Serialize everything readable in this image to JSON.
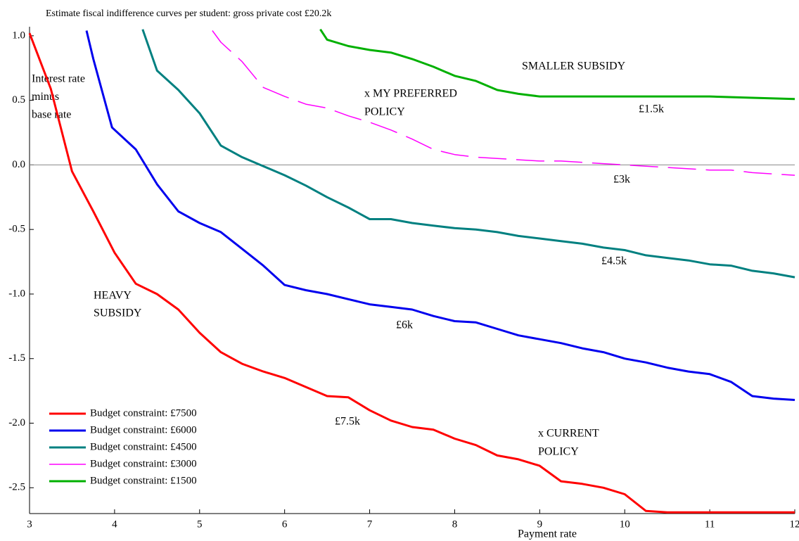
{
  "chart_data": {
    "type": "line",
    "title": "Estimate fiscal indifference curves per student: gross private cost £20.2k",
    "xlabel": "Payment rate",
    "ylabel": [
      "Interest rate",
      "minus",
      "base rate"
    ],
    "xlim": [
      3,
      12
    ],
    "xticks": [
      3,
      4,
      5,
      6,
      7,
      8,
      9,
      10,
      11,
      12
    ],
    "ylim": [
      -2.7,
      1.07
    ],
    "yticks": [
      -2.5,
      {
        "value": -2,
        "label": "-2.0"
      },
      -1.5,
      {
        "value": -1,
        "label": "-1.0"
      },
      -0.5,
      {
        "value": 0,
        "label": "0.0"
      },
      0.5,
      {
        "value": 1,
        "label": "1.0"
      }
    ],
    "zero_line": true,
    "legend": "lower left",
    "annotations": [
      "SMALLER SUBSIDY",
      "x MY PREFERRED",
      "POLICY",
      "£1.5k",
      "£3k",
      "£4.5k",
      "£6k",
      "HEAVY",
      "SUBSIDY",
      "£7.5k",
      "x CURRENT",
      "POLICY"
    ],
    "series": [
      {
        "name": "Budget constraint: £7500",
        "color": "#ff0000",
        "dashed": false,
        "x": [
          3,
          3.25,
          3.5,
          3.75,
          4,
          4.25,
          4.5,
          4.75,
          5,
          5.25,
          5.5,
          5.75,
          6,
          6.25,
          6.5,
          6.75,
          7,
          7.25,
          7.5,
          7.75,
          8,
          8.25,
          8.5,
          8.75,
          9,
          9.25,
          9.5,
          9.75,
          10,
          10.25,
          10.5,
          11,
          11.5,
          12
        ],
        "values": [
          1.02,
          0.59,
          -0.05,
          -0.36,
          -0.68,
          -0.92,
          -1.0,
          -1.12,
          -1.3,
          -1.45,
          -1.54,
          -1.6,
          -1.65,
          -1.72,
          -1.79,
          -1.8,
          -1.9,
          -1.98,
          -2.03,
          -2.05,
          -2.12,
          -2.17,
          -2.25,
          -2.28,
          -2.33,
          -2.45,
          -2.47,
          -2.5,
          -2.55,
          -2.68,
          -2.69,
          -2.69,
          -2.69,
          -2.69
        ]
      },
      {
        "name": "Budget constraint: £6000",
        "color": "#0000ee",
        "dashed": false,
        "x": [
          3.67,
          3.75,
          3.97,
          4.25,
          4.5,
          4.75,
          5,
          5.25,
          5.5,
          5.75,
          6,
          6.25,
          6.5,
          6.75,
          7,
          7.25,
          7.5,
          7.75,
          8,
          8.25,
          8.5,
          8.75,
          9,
          9.25,
          9.5,
          9.75,
          10,
          10.25,
          10.5,
          10.75,
          11,
          11.25,
          11.5,
          11.75,
          12
        ],
        "values": [
          1.04,
          0.82,
          0.29,
          0.12,
          -0.15,
          -0.36,
          -0.45,
          -0.52,
          -0.65,
          -0.78,
          -0.93,
          -0.97,
          -1.0,
          -1.04,
          -1.08,
          -1.1,
          -1.12,
          -1.17,
          -1.21,
          -1.22,
          -1.27,
          -1.32,
          -1.35,
          -1.38,
          -1.42,
          -1.45,
          -1.5,
          -1.53,
          -1.57,
          -1.6,
          -1.62,
          -1.68,
          -1.79,
          -1.81,
          -1.82
        ]
      },
      {
        "name": "Budget constraint: £4500",
        "color": "#008080",
        "dashed": false,
        "x": [
          4.33,
          4.5,
          4.75,
          5,
          5.25,
          5.5,
          5.75,
          6,
          6.25,
          6.5,
          6.75,
          7,
          7.25,
          7.5,
          7.75,
          8,
          8.25,
          8.5,
          8.75,
          9,
          9.25,
          9.5,
          9.75,
          10,
          10.25,
          10.5,
          10.75,
          11,
          11.25,
          11.5,
          11.75,
          12
        ],
        "values": [
          1.05,
          0.73,
          0.58,
          0.4,
          0.15,
          0.06,
          -0.01,
          -0.08,
          -0.16,
          -0.25,
          -0.33,
          -0.42,
          -0.42,
          -0.45,
          -0.47,
          -0.49,
          -0.5,
          -0.52,
          -0.55,
          -0.57,
          -0.59,
          -0.61,
          -0.64,
          -0.66,
          -0.7,
          -0.72,
          -0.74,
          -0.77,
          -0.78,
          -0.82,
          -0.84,
          -0.87
        ]
      },
      {
        "name": "Budget constraint: £3000",
        "color": "#ff00ff",
        "dashed": true,
        "x": [
          5.15,
          5.25,
          5.5,
          5.75,
          6,
          6.25,
          6.5,
          6.75,
          7,
          7.25,
          7.5,
          7.75,
          8,
          8.25,
          8.5,
          8.75,
          9,
          9.25,
          9.5,
          9.75,
          10,
          10.25,
          10.5,
          10.75,
          11,
          11.25,
          11.5,
          11.75,
          12
        ],
        "values": [
          1.04,
          0.95,
          0.8,
          0.6,
          0.53,
          0.47,
          0.44,
          0.38,
          0.33,
          0.27,
          0.2,
          0.12,
          0.08,
          0.06,
          0.05,
          0.04,
          0.03,
          0.03,
          0.02,
          0.01,
          0.0,
          -0.01,
          -0.02,
          -0.03,
          -0.04,
          -0.04,
          -0.06,
          -0.07,
          -0.08
        ]
      },
      {
        "name": "Budget constraint: £1500",
        "color": "#00b000",
        "dashed": false,
        "x": [
          6.42,
          6.5,
          6.75,
          7,
          7.25,
          7.5,
          7.75,
          8,
          8.25,
          8.5,
          8.75,
          9,
          9.5,
          10,
          10.5,
          11,
          11.5,
          12
        ],
        "values": [
          1.05,
          0.97,
          0.92,
          0.89,
          0.87,
          0.82,
          0.76,
          0.69,
          0.65,
          0.58,
          0.55,
          0.53,
          0.53,
          0.53,
          0.53,
          0.53,
          0.52,
          0.51
        ]
      }
    ]
  }
}
